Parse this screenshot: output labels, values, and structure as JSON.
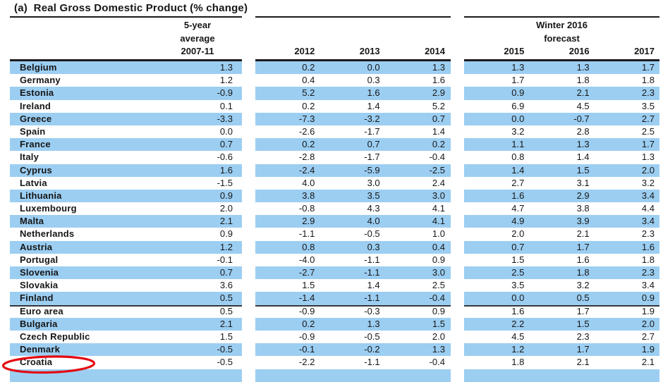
{
  "title": "(a)  Real Gross Domestic Product (% change)",
  "colors": {
    "highlight": "#9CCEF2",
    "rule": "#1B1B1B",
    "annotation": "#E30911"
  },
  "header": {
    "avg_lines": [
      "5-year",
      "average",
      "2007-11"
    ],
    "forecast_lines": [
      "Winter 2016",
      "forecast"
    ],
    "years_left": [
      "2012",
      "2013",
      "2014"
    ],
    "years_right": [
      "2015",
      "2016",
      "2017"
    ]
  },
  "layout": {
    "rule_after_indices": [
      18,
      19
    ],
    "partial_bottom_row": true
  },
  "annotation": {
    "shape": "hand-drawn-red-ellipse",
    "target": "Croatia"
  },
  "chart_data": {
    "type": "table",
    "title": "(a) Real Gross Domestic Product (% change)",
    "columns": [
      "Country",
      "5-year average 2007-11",
      "2012",
      "2013",
      "2014",
      "2015",
      "2016",
      "2017"
    ],
    "column_groups": [
      {
        "label": "Winter 2016 forecast",
        "columns": [
          "2015",
          "2016",
          "2017"
        ]
      }
    ],
    "rows": [
      {
        "country": "Belgium",
        "values": [
          "1.3",
          "0.2",
          "0.0",
          "1.3",
          "1.3",
          "1.3",
          "1.7"
        ],
        "highlight": true
      },
      {
        "country": "Germany",
        "values": [
          "1.2",
          "0.4",
          "0.3",
          "1.6",
          "1.7",
          "1.8",
          "1.8"
        ],
        "highlight": false
      },
      {
        "country": "Estonia",
        "values": [
          "-0.9",
          "5.2",
          "1.6",
          "2.9",
          "0.9",
          "2.1",
          "2.3"
        ],
        "highlight": true
      },
      {
        "country": "Ireland",
        "values": [
          "0.1",
          "0.2",
          "1.4",
          "5.2",
          "6.9",
          "4.5",
          "3.5"
        ],
        "highlight": false
      },
      {
        "country": "Greece",
        "values": [
          "-3.3",
          "-7.3",
          "-3.2",
          "0.7",
          "0.0",
          "-0.7",
          "2.7"
        ],
        "highlight": true
      },
      {
        "country": "Spain",
        "values": [
          "0.0",
          "-2.6",
          "-1.7",
          "1.4",
          "3.2",
          "2.8",
          "2.5"
        ],
        "highlight": false
      },
      {
        "country": "France",
        "values": [
          "0.7",
          "0.2",
          "0.7",
          "0.2",
          "1.1",
          "1.3",
          "1.7"
        ],
        "highlight": true
      },
      {
        "country": "Italy",
        "values": [
          "-0.6",
          "-2.8",
          "-1.7",
          "-0.4",
          "0.8",
          "1.4",
          "1.3"
        ],
        "highlight": false
      },
      {
        "country": "Cyprus",
        "values": [
          "1.6",
          "-2.4",
          "-5.9",
          "-2.5",
          "1.4",
          "1.5",
          "2.0"
        ],
        "highlight": true
      },
      {
        "country": "Latvia",
        "values": [
          "-1.5",
          "4.0",
          "3.0",
          "2.4",
          "2.7",
          "3.1",
          "3.2"
        ],
        "highlight": false
      },
      {
        "country": "Lithuania",
        "values": [
          "0.9",
          "3.8",
          "3.5",
          "3.0",
          "1.6",
          "2.9",
          "3.4"
        ],
        "highlight": true
      },
      {
        "country": "Luxembourg",
        "values": [
          "2.0",
          "-0.8",
          "4.3",
          "4.1",
          "4.7",
          "3.8",
          "4.4"
        ],
        "highlight": false
      },
      {
        "country": "Malta",
        "values": [
          "2.1",
          "2.9",
          "4.0",
          "4.1",
          "4.9",
          "3.9",
          "3.4"
        ],
        "highlight": true
      },
      {
        "country": "Netherlands",
        "values": [
          "0.9",
          "-1.1",
          "-0.5",
          "1.0",
          "2.0",
          "2.1",
          "2.3"
        ],
        "highlight": false
      },
      {
        "country": "Austria",
        "values": [
          "1.2",
          "0.8",
          "0.3",
          "0.4",
          "0.7",
          "1.7",
          "1.6"
        ],
        "highlight": true
      },
      {
        "country": "Portugal",
        "values": [
          "-0.1",
          "-4.0",
          "-1.1",
          "0.9",
          "1.5",
          "1.6",
          "1.8"
        ],
        "highlight": false
      },
      {
        "country": "Slovenia",
        "values": [
          "0.7",
          "-2.7",
          "-1.1",
          "3.0",
          "2.5",
          "1.8",
          "2.3"
        ],
        "highlight": true
      },
      {
        "country": "Slovakia",
        "values": [
          "3.6",
          "1.5",
          "1.4",
          "2.5",
          "3.5",
          "3.2",
          "3.4"
        ],
        "highlight": false
      },
      {
        "country": "Finland",
        "values": [
          "0.5",
          "-1.4",
          "-1.1",
          "-0.4",
          "0.0",
          "0.5",
          "0.9"
        ],
        "highlight": true
      },
      {
        "country": "Euro area",
        "values": [
          "0.5",
          "-0.9",
          "-0.3",
          "0.9",
          "1.6",
          "1.7",
          "1.9"
        ],
        "highlight": false
      },
      {
        "country": "Bulgaria",
        "values": [
          "2.1",
          "0.2",
          "1.3",
          "1.5",
          "2.2",
          "1.5",
          "2.0"
        ],
        "highlight": true
      },
      {
        "country": "Czech Republic",
        "values": [
          "1.5",
          "-0.9",
          "-0.5",
          "2.0",
          "4.5",
          "2.3",
          "2.7"
        ],
        "highlight": false
      },
      {
        "country": "Denmark",
        "values": [
          "-0.5",
          "-0.1",
          "-0.2",
          "1.3",
          "1.2",
          "1.7",
          "1.9"
        ],
        "highlight": true
      },
      {
        "country": "Croatia",
        "values": [
          "-0.5",
          "-2.2",
          "-1.1",
          "-0.4",
          "1.8",
          "2.1",
          "2.1"
        ],
        "highlight": false
      }
    ]
  }
}
